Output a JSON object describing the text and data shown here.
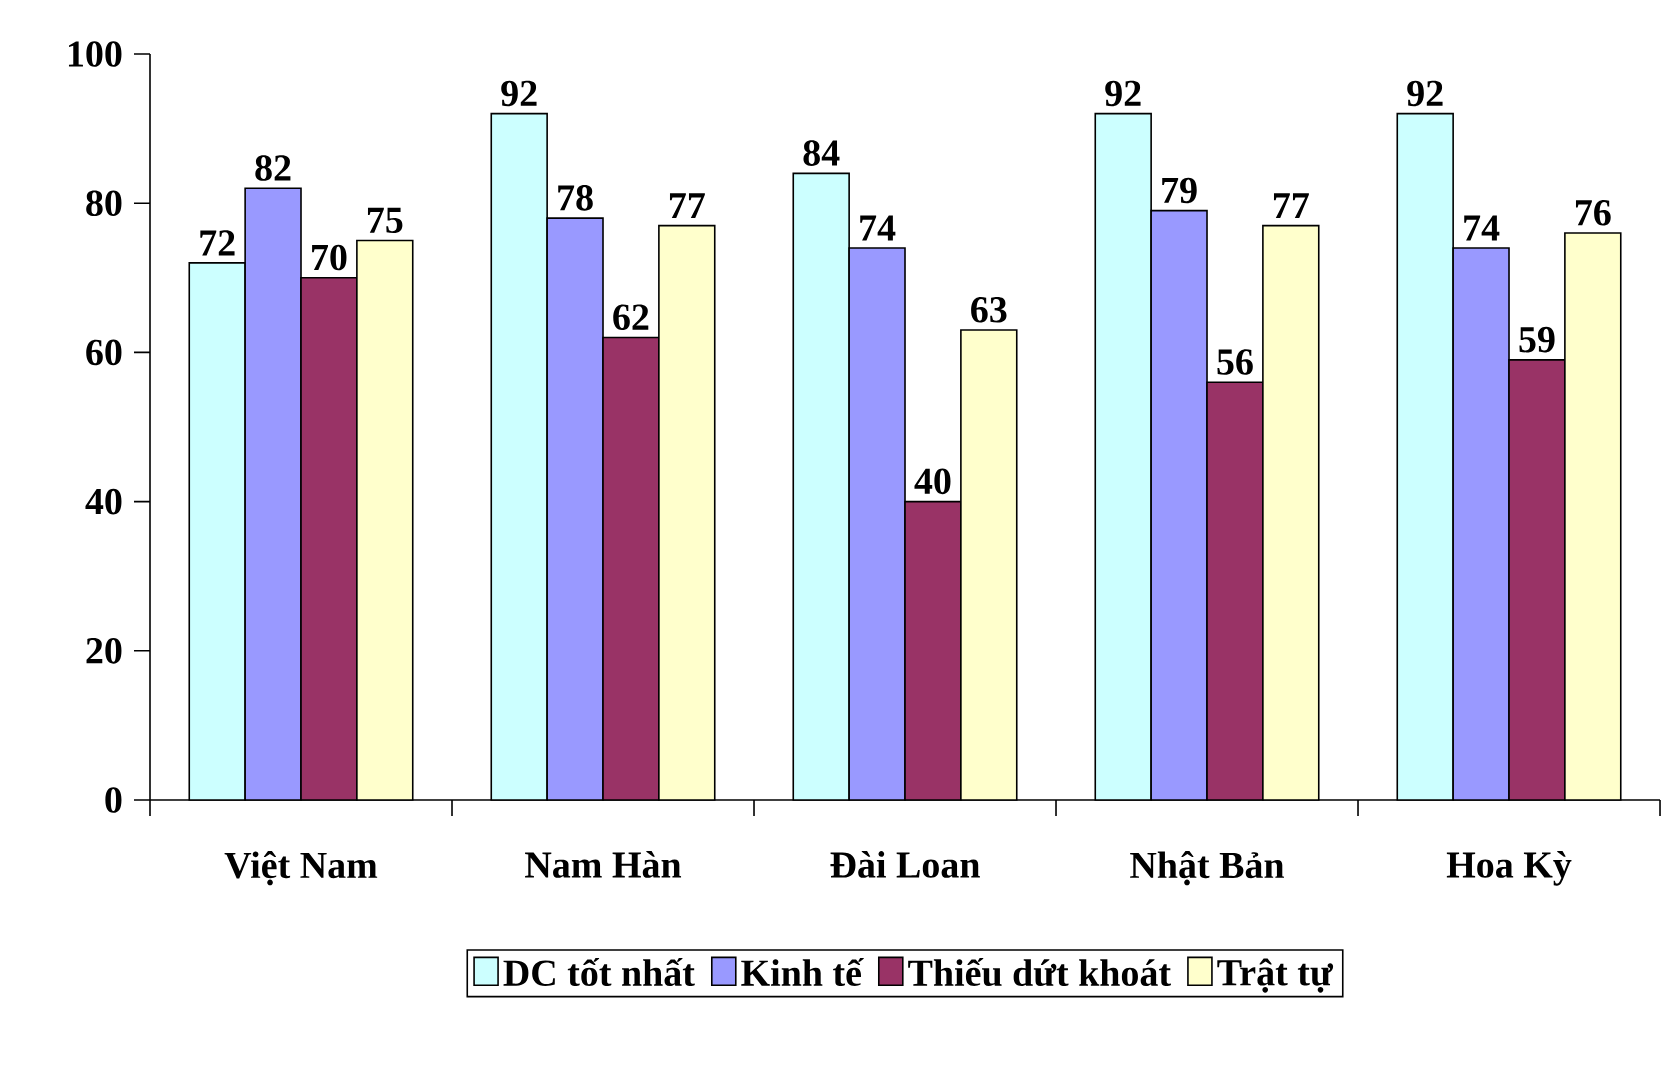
{
  "chart_data": {
    "type": "bar",
    "categories": [
      "Việt Nam",
      "Nam Hàn",
      "Đài Loan",
      "Nhật Bản",
      "Hoa Kỳ"
    ],
    "series": [
      {
        "name": "DC tốt nhất",
        "color": "#ccffff",
        "values": [
          72,
          92,
          84,
          92,
          92
        ]
      },
      {
        "name": "Kinh tế",
        "color": "#9999ff",
        "values": [
          82,
          78,
          74,
          79,
          74
        ]
      },
      {
        "name": "Thiếu dứt khoát",
        "color": "#993366",
        "values": [
          70,
          62,
          40,
          56,
          59
        ]
      },
      {
        "name": "Trật tự",
        "color": "#ffffcc",
        "values": [
          75,
          77,
          63,
          77,
          76
        ]
      }
    ],
    "ylim": [
      0,
      100
    ],
    "yticks": [
      0,
      20,
      40,
      60,
      80,
      100
    ],
    "data_labels": true,
    "grid": false,
    "legend": "bottom"
  }
}
